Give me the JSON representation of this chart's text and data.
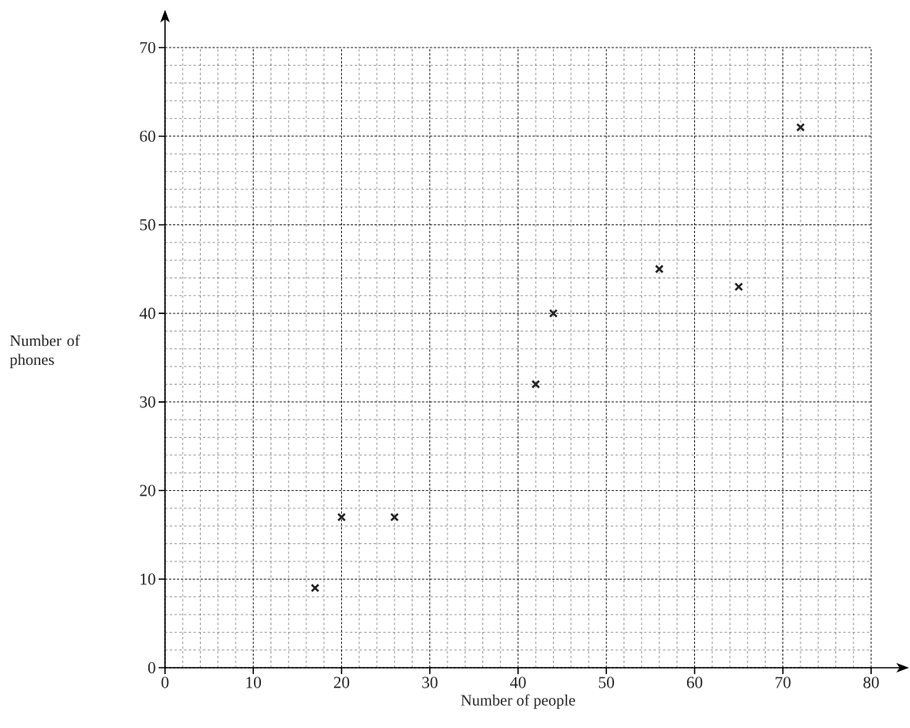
{
  "chart_data": {
    "type": "scatter",
    "xlabel": "Number of people",
    "ylabel": "Number of phones",
    "x": [
      17,
      20,
      26,
      42,
      44,
      56,
      65,
      72
    ],
    "values": [
      9,
      17,
      17,
      32,
      40,
      45,
      43,
      61
    ],
    "color": "#222222",
    "marker": "cross",
    "grid": true,
    "xlim": [
      0,
      80
    ],
    "ylim": [
      0,
      70
    ],
    "xticks": [
      0,
      10,
      20,
      30,
      40,
      50,
      60,
      70,
      80
    ],
    "yticks": [
      0,
      10,
      20,
      30,
      40,
      50,
      60,
      70
    ]
  }
}
